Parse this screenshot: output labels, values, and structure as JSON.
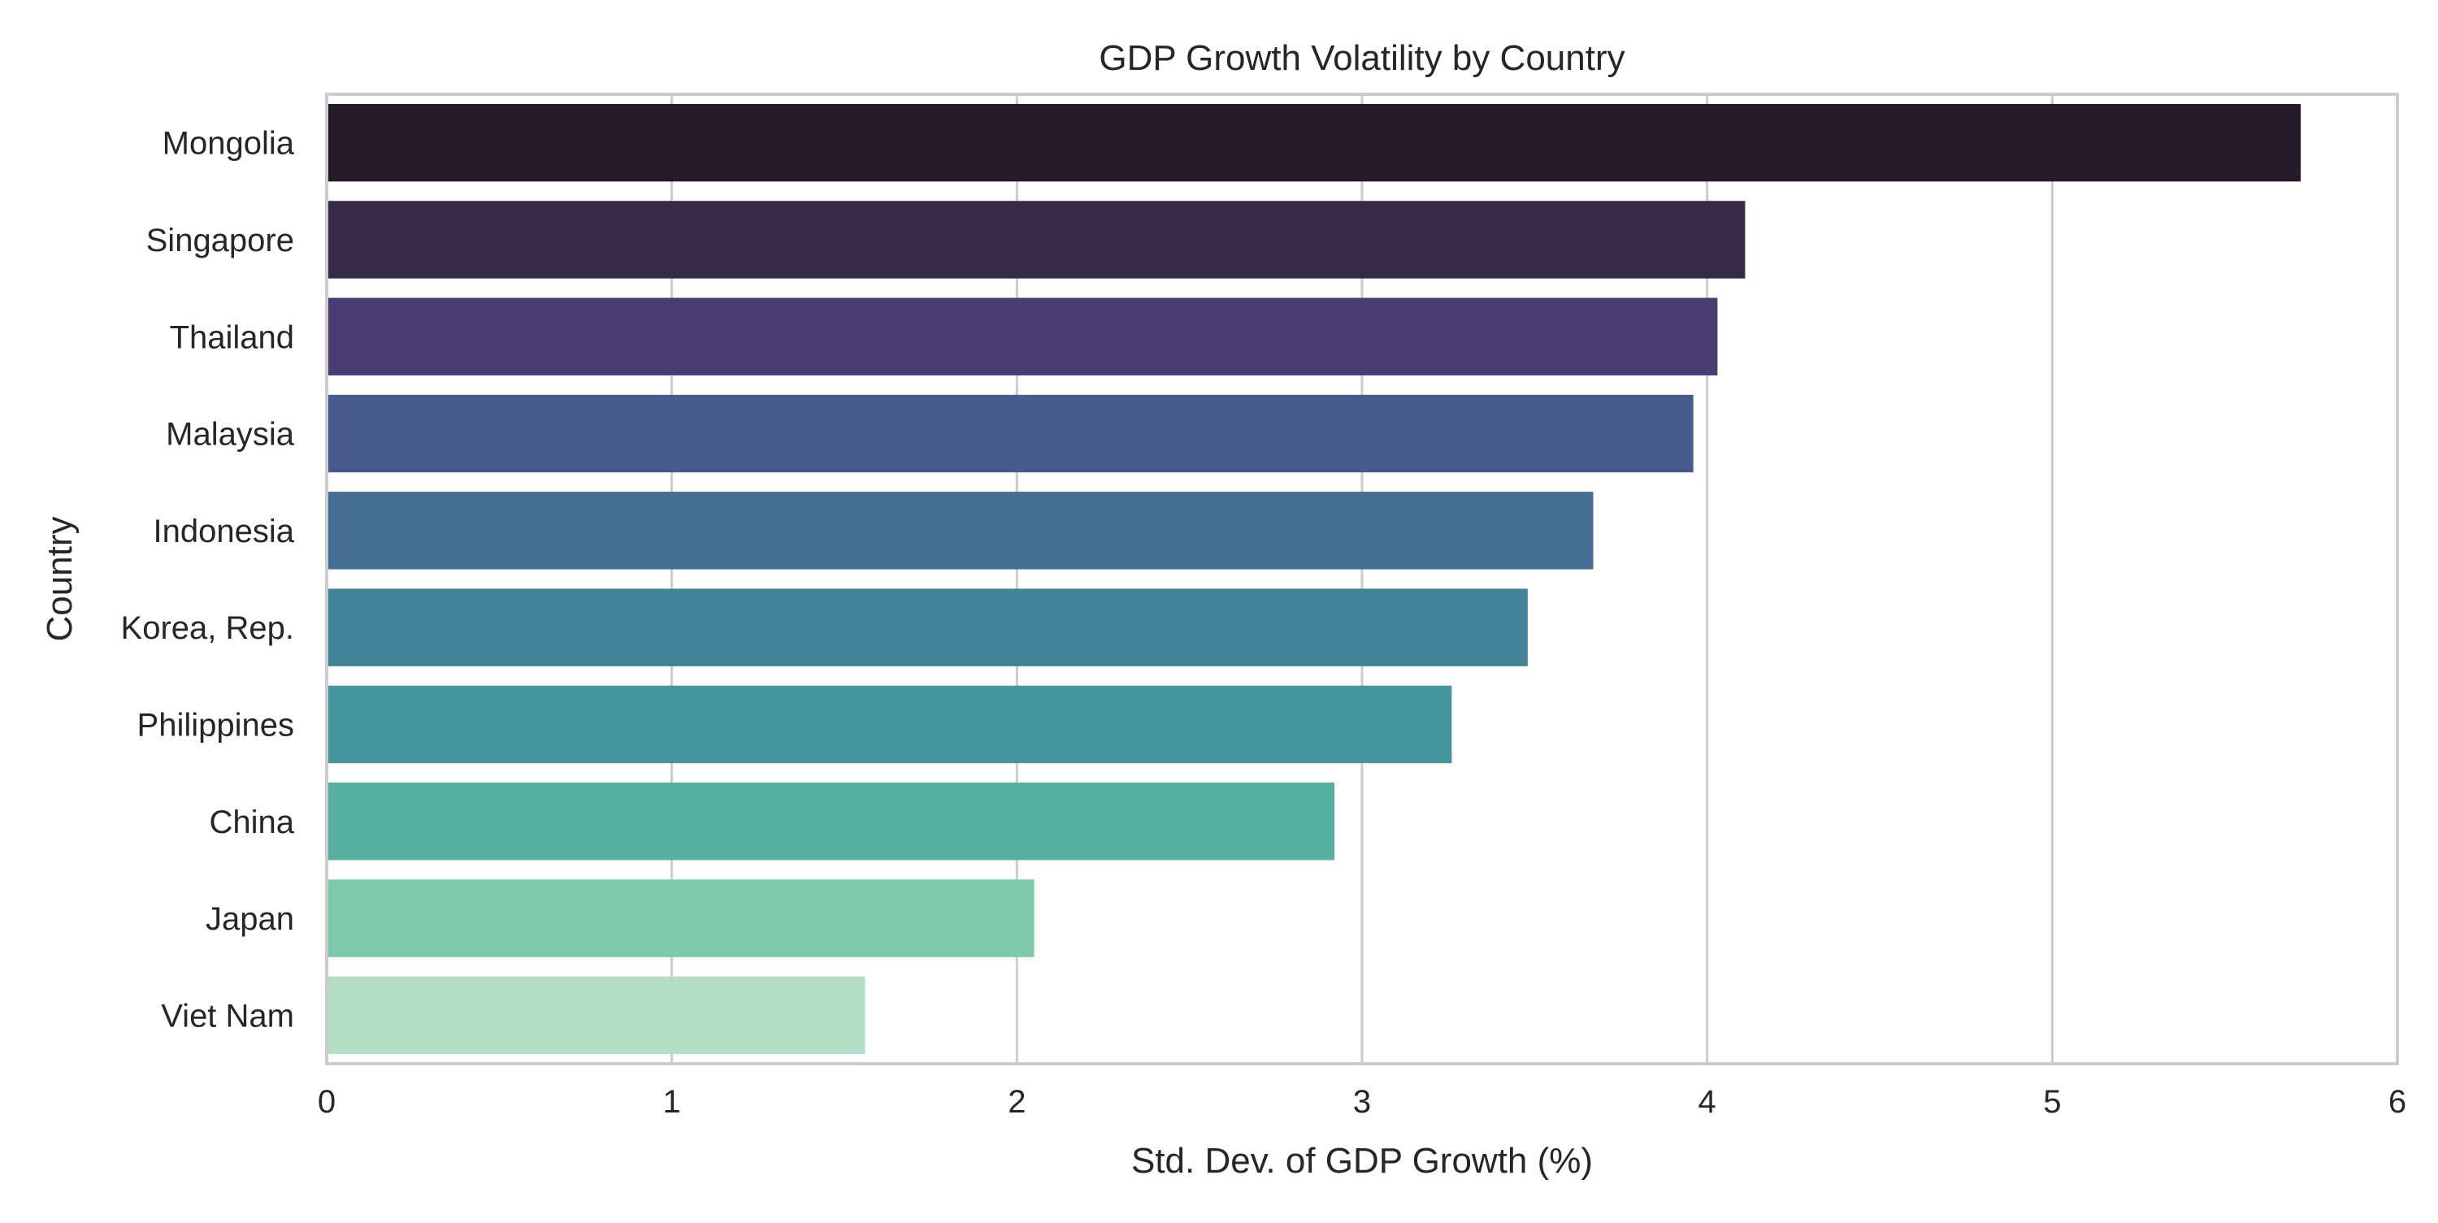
{
  "chart_data": {
    "type": "bar",
    "orientation": "horizontal",
    "title": "GDP Growth Volatility by Country",
    "xlabel": "Std. Dev. of GDP Growth (%)",
    "ylabel": "Country",
    "xlim": [
      0,
      6
    ],
    "x_ticks": [
      "0",
      "1",
      "2",
      "3",
      "4",
      "5",
      "6"
    ],
    "grid": true,
    "categories": [
      "Mongolia",
      "Singapore",
      "Thailand",
      "Malaysia",
      "Indonesia",
      "Korea, Rep.",
      "Philippines",
      "China",
      "Japan",
      "Viet Nam"
    ],
    "values": [
      5.72,
      4.11,
      4.03,
      3.96,
      3.67,
      3.48,
      3.26,
      2.92,
      2.05,
      1.56
    ],
    "colors": [
      "#241a29",
      "#362a47",
      "#473d72",
      "#48598c",
      "#436d92",
      "#418297",
      "#45969d",
      "#55b0a2",
      "#7cc8ab",
      "#b3ddc4"
    ]
  }
}
